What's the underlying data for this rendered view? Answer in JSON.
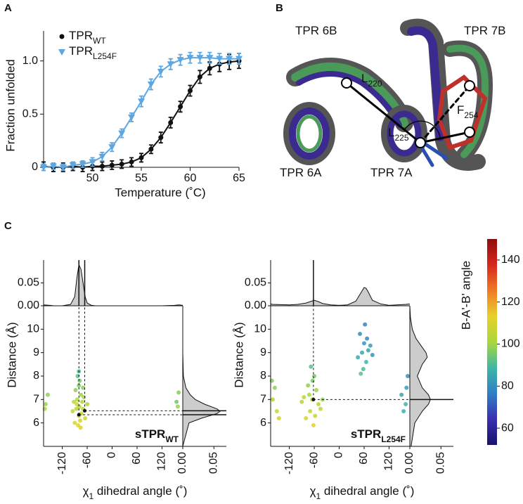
{
  "panels": [
    "A",
    "B",
    "C"
  ],
  "structure": {
    "labels": [
      {
        "text": "TPR 6B"
      },
      {
        "text": "TPR 7B"
      },
      {
        "text": "TPR 6A"
      },
      {
        "text": "TPR 7A"
      },
      {
        "text": "L",
        "sub": "220"
      },
      {
        "text": "L",
        "sub": "225"
      },
      {
        "text": "F",
        "sub": "254"
      }
    ]
  },
  "colorbar": {
    "label": "B-A'-B' angle",
    "lim": [
      52,
      150
    ],
    "ticks": [
      60,
      80,
      100,
      120,
      140
    ],
    "colors": [
      "#16126b",
      "#3a2fb0",
      "#2f7fc4",
      "#3fb7a6",
      "#a9d83a",
      "#e8d12a",
      "#ef7a25",
      "#d7261e",
      "#8e0d0d"
    ]
  },
  "chart_data": [
    {
      "type": "line",
      "x_label": "Temperature (˚C)",
      "y_label": "Fraction unfolded",
      "x": [
        45,
        46,
        47,
        48,
        49,
        50,
        51,
        52,
        53,
        54,
        55,
        56,
        57,
        58,
        59,
        60,
        61,
        62,
        63,
        64,
        65
      ],
      "series": [
        {
          "name": "TPR",
          "name_sub": "WT",
          "color": "#111111",
          "marker": "circle",
          "values": [
            0.01,
            0.0,
            0.0,
            0.01,
            0.0,
            0.01,
            0.01,
            0.02,
            0.03,
            0.05,
            0.09,
            0.17,
            0.28,
            0.42,
            0.57,
            0.72,
            0.85,
            0.93,
            0.97,
            0.99,
            1.0
          ],
          "errors": [
            0.04,
            0.04,
            0.04,
            0.04,
            0.04,
            0.04,
            0.04,
            0.04,
            0.04,
            0.04,
            0.04,
            0.04,
            0.05,
            0.05,
            0.05,
            0.05,
            0.06,
            0.06,
            0.07,
            0.07,
            0.07
          ]
        },
        {
          "name": "TPR",
          "name_sub": "L254F",
          "color": "#5ea6e0",
          "marker": "triangle",
          "values": [
            0.0,
            0.01,
            0.0,
            0.02,
            0.03,
            0.05,
            0.1,
            0.19,
            0.32,
            0.47,
            0.62,
            0.78,
            0.9,
            0.97,
            1.01,
            1.03,
            1.03,
            1.03,
            1.02,
            1.02,
            1.02
          ],
          "errors": [
            0.03,
            0.03,
            0.03,
            0.03,
            0.03,
            0.04,
            0.04,
            0.04,
            0.04,
            0.04,
            0.05,
            0.05,
            0.05,
            0.05,
            0.05,
            0.05,
            0.05,
            0.05,
            0.05,
            0.05,
            0.05
          ]
        }
      ],
      "xlim": [
        45,
        65
      ],
      "ylim": [
        0,
        1.15
      ],
      "xticks": [
        50,
        55,
        60,
        65
      ],
      "yticks": [
        0,
        0.5,
        {
          "value": 1,
          "label": "1.0"
        }
      ]
    },
    {
      "type": "scatter",
      "inset_label": "sTPR",
      "inset_label_sub": "WT",
      "x_label": "χ",
      "x_label_sub": "1",
      "x_label_rest": " dihedral angle (˚)",
      "y_label": "Distance (Å)",
      "x": [
        -80,
        -85,
        -75,
        -90,
        -70,
        -78,
        -82,
        -72,
        -88,
        -95,
        -65,
        -60,
        -80,
        -77,
        -84,
        -70,
        -92,
        -74,
        -86,
        -68,
        -80,
        -76,
        -83,
        -79,
        -160,
        -155,
        -162,
        155,
        160,
        158
      ],
      "y": [
        6.3,
        6.8,
        7.2,
        6.0,
        6.6,
        7.8,
        5.9,
        6.9,
        7.4,
        6.5,
        6.2,
        6.8,
        8.2,
        6.1,
        7.0,
        7.5,
        6.9,
        6.4,
        6.6,
        7.1,
        7.6,
        5.8,
        8.0,
        6.7,
        6.8,
        7.2,
        6.6,
        6.9,
        7.3,
        6.7
      ],
      "angle": [
        105,
        108,
        100,
        110,
        104,
        95,
        112,
        103,
        98,
        106,
        107,
        102,
        90,
        109,
        101,
        97,
        105,
        106,
        104,
        100,
        96,
        111,
        92,
        103,
        100,
        98,
        102,
        95,
        97,
        99
      ],
      "xlim": [
        -165,
        170
      ],
      "ylim": [
        5,
        11
      ],
      "xticks": [
        -120,
        -60,
        0,
        60,
        120
      ],
      "yticks": [
        6,
        7,
        8,
        9,
        10
      ],
      "top_density": {
        "x": [
          -165,
          -150,
          -140,
          -120,
          -100,
          -90,
          -85,
          -80,
          -75,
          -70,
          -65,
          -60,
          -50,
          -40,
          0,
          60,
          120,
          150,
          160,
          170
        ],
        "values": [
          0.002,
          0.001,
          0,
          0,
          0.003,
          0.02,
          0.06,
          0.09,
          0.08,
          0.05,
          0.02,
          0.006,
          0.001,
          0,
          0,
          0,
          0,
          0.001,
          0.002,
          0.001
        ],
        "ylim": [
          0,
          0.1
        ],
        "yticks": [
          {
            "value": 0,
            "label": "0.00"
          },
          0.05
        ]
      },
      "right_density": {
        "y": [
          5,
          6.0,
          6.2,
          6.4,
          6.5,
          6.6,
          6.8,
          7.0,
          7.2,
          7.5,
          8,
          9,
          10,
          11
        ],
        "values": [
          0,
          0.01,
          0.03,
          0.055,
          0.06,
          0.055,
          0.035,
          0.02,
          0.012,
          0.005,
          0.001,
          0,
          0,
          0
        ],
        "xlim": [
          0,
          0.07
        ],
        "xticks": [
          0.05,
          {
            "value": 0,
            "label": "0.00"
          }
        ]
      },
      "medians": [
        {
          "x": -80,
          "y": 6.35
        },
        {
          "x": -66,
          "y": 6.52
        }
      ]
    },
    {
      "type": "scatter",
      "inset_label": "sTPR",
      "inset_label_sub": "L254F",
      "x_label": "χ",
      "x_label_sub": "1",
      "x_label_rest": " dihedral angle (˚)",
      "y_label": "Distance (Å)",
      "x": [
        -65,
        -70,
        -55,
        -80,
        -60,
        -50,
        -75,
        -62,
        -85,
        -45,
        -68,
        -58,
        -72,
        -90,
        -40,
        -64,
        55,
        60,
        65,
        50,
        70,
        45,
        62,
        58,
        75,
        80,
        67,
        52,
        -160,
        -150,
        -155,
        -145,
        -162,
        150,
        160,
        165,
        162,
        155
      ],
      "y": [
        7.0,
        6.5,
        7.4,
        6.2,
        8.0,
        6.8,
        7.6,
        5.9,
        7.1,
        6.6,
        8.4,
        6.3,
        7.2,
        6.9,
        7.0,
        7.8,
        9.0,
        9.4,
        8.6,
        9.8,
        9.1,
        8.8,
        10.2,
        8.3,
        9.3,
        8.9,
        9.6,
        8.1,
        7.0,
        6.5,
        7.5,
        6.2,
        7.8,
        7.2,
        6.8,
        8.0,
        7.5,
        6.5
      ],
      "angle": [
        103,
        107,
        100,
        110,
        95,
        104,
        98,
        112,
        105,
        106,
        92,
        108,
        101,
        104,
        99,
        96,
        85,
        82,
        88,
        80,
        84,
        86,
        78,
        90,
        83,
        81,
        79,
        92,
        102,
        106,
        98,
        108,
        97,
        85,
        88,
        80,
        83,
        87
      ],
      "xlim": [
        -165,
        170
      ],
      "ylim": [
        5,
        11
      ],
      "xticks": [
        -120,
        -60,
        0,
        60,
        120
      ],
      "yticks": [
        6,
        7,
        8,
        9,
        10
      ],
      "top_density": {
        "x": [
          -165,
          -160,
          -120,
          -100,
          -80,
          -70,
          -60,
          -50,
          -40,
          -20,
          0,
          20,
          40,
          50,
          60,
          65,
          70,
          80,
          100,
          120,
          160,
          170
        ],
        "values": [
          0.004,
          0.003,
          0.002,
          0.003,
          0.006,
          0.009,
          0.012,
          0.009,
          0.005,
          0.002,
          0.001,
          0.002,
          0.01,
          0.025,
          0.04,
          0.038,
          0.03,
          0.012,
          0.004,
          0.001,
          0.003,
          0.004
        ],
        "ylim": [
          0,
          0.1
        ],
        "yticks": [
          {
            "value": 0,
            "label": "0.00"
          },
          0.05
        ]
      },
      "right_density": {
        "y": [
          5,
          6,
          6.5,
          6.8,
          7.0,
          7.2,
          7.5,
          8.0,
          8.5,
          8.8,
          9.0,
          9.3,
          9.6,
          10,
          10.5,
          11
        ],
        "values": [
          0.002,
          0.008,
          0.02,
          0.03,
          0.033,
          0.03,
          0.02,
          0.012,
          0.02,
          0.028,
          0.026,
          0.018,
          0.01,
          0.004,
          0.001,
          0
        ],
        "xlim": [
          0,
          0.07
        ],
        "xticks": [
          0.05,
          {
            "value": 0,
            "label": "0.00"
          }
        ]
      },
      "medians": [
        {
          "x": -62,
          "y": 7.0
        }
      ]
    }
  ]
}
